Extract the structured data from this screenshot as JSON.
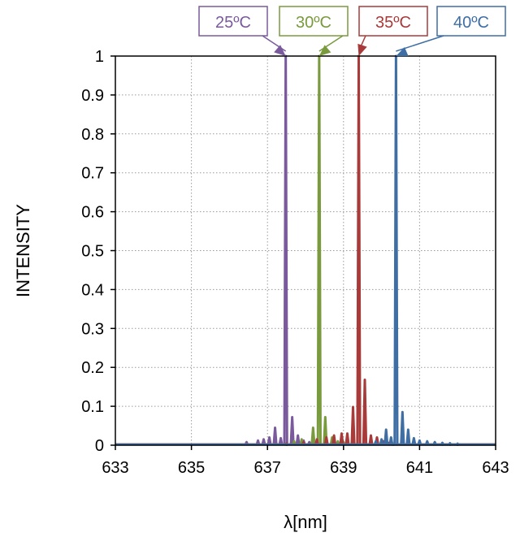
{
  "chart_data": {
    "type": "line",
    "title": "",
    "xlabel": "λ[nm]",
    "ylabel": "INTENSITY",
    "xlim": [
      633,
      643
    ],
    "ylim": [
      0,
      1
    ],
    "x_ticks": [
      "633",
      "635",
      "637",
      "639",
      "641",
      "643"
    ],
    "y_ticks": [
      "0",
      "0.1",
      "0.2",
      "0.3",
      "0.4",
      "0.5",
      "0.6",
      "0.7",
      "0.8",
      "0.9",
      "1"
    ],
    "grid": "dotted",
    "series": [
      {
        "name": "25ºC",
        "color": "#7a5a9c",
        "peaks": [
          {
            "x": 636.45,
            "y": 0.008
          },
          {
            "x": 636.75,
            "y": 0.012
          },
          {
            "x": 636.9,
            "y": 0.015
          },
          {
            "x": 637.05,
            "y": 0.02
          },
          {
            "x": 637.2,
            "y": 0.045
          },
          {
            "x": 637.35,
            "y": 0.018
          },
          {
            "x": 637.48,
            "y": 1.0
          },
          {
            "x": 637.65,
            "y": 0.072
          },
          {
            "x": 637.8,
            "y": 0.025
          },
          {
            "x": 637.95,
            "y": 0.012
          },
          {
            "x": 638.1,
            "y": 0.008
          }
        ]
      },
      {
        "name": "30ºC",
        "color": "#7a9a3e",
        "peaks": [
          {
            "x": 637.7,
            "y": 0.01
          },
          {
            "x": 637.9,
            "y": 0.015
          },
          {
            "x": 638.2,
            "y": 0.045
          },
          {
            "x": 638.36,
            "y": 1.0
          },
          {
            "x": 638.52,
            "y": 0.072
          },
          {
            "x": 638.7,
            "y": 0.02
          },
          {
            "x": 638.85,
            "y": 0.01
          },
          {
            "x": 639.0,
            "y": 0.008
          },
          {
            "x": 640.3,
            "y": 0.004
          }
        ]
      },
      {
        "name": "35ºC",
        "color": "#a83a3a",
        "peaks": [
          {
            "x": 637.5,
            "y": 0.004
          },
          {
            "x": 637.95,
            "y": 0.008
          },
          {
            "x": 638.3,
            "y": 0.015
          },
          {
            "x": 638.55,
            "y": 0.02
          },
          {
            "x": 638.75,
            "y": 0.025
          },
          {
            "x": 638.95,
            "y": 0.03
          },
          {
            "x": 639.1,
            "y": 0.03
          },
          {
            "x": 639.25,
            "y": 0.098
          },
          {
            "x": 639.4,
            "y": 1.0
          },
          {
            "x": 639.56,
            "y": 0.168
          },
          {
            "x": 639.72,
            "y": 0.025
          },
          {
            "x": 639.88,
            "y": 0.02
          },
          {
            "x": 640.05,
            "y": 0.01
          },
          {
            "x": 640.2,
            "y": 0.006
          }
        ]
      },
      {
        "name": "40ºC",
        "color": "#3f6ea5",
        "peaks": [
          {
            "x": 639.85,
            "y": 0.01
          },
          {
            "x": 640.0,
            "y": 0.015
          },
          {
            "x": 640.12,
            "y": 0.04
          },
          {
            "x": 640.25,
            "y": 0.02
          },
          {
            "x": 640.38,
            "y": 1.0
          },
          {
            "x": 640.55,
            "y": 0.085
          },
          {
            "x": 640.7,
            "y": 0.04
          },
          {
            "x": 640.85,
            "y": 0.018
          },
          {
            "x": 641.0,
            "y": 0.012
          },
          {
            "x": 641.2,
            "y": 0.01
          },
          {
            "x": 641.4,
            "y": 0.008
          },
          {
            "x": 641.6,
            "y": 0.006
          },
          {
            "x": 641.8,
            "y": 0.005
          },
          {
            "x": 642.0,
            "y": 0.004
          }
        ]
      }
    ]
  }
}
